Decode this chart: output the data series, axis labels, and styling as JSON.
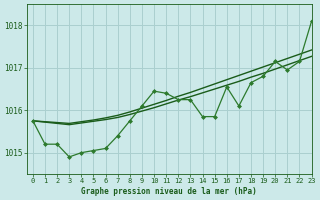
{
  "xlabel": "Graphe pression niveau de la mer (hPa)",
  "xlim": [
    -0.5,
    23
  ],
  "ylim": [
    1014.5,
    1018.5
  ],
  "yticks": [
    1015,
    1016,
    1017,
    1018
  ],
  "xticks": [
    0,
    1,
    2,
    3,
    4,
    5,
    6,
    7,
    8,
    9,
    10,
    11,
    12,
    13,
    14,
    15,
    16,
    17,
    18,
    19,
    20,
    21,
    22,
    23
  ],
  "background_color": "#cce9e9",
  "grid_color": "#aacfcf",
  "line_color": "#1a5c1a",
  "line_color2": "#2d7a2d",
  "smooth1": [
    1015.75,
    1015.72,
    1015.69,
    1015.66,
    1015.7,
    1015.74,
    1015.78,
    1015.83,
    1015.9,
    1015.98,
    1016.06,
    1016.15,
    1016.24,
    1016.32,
    1016.41,
    1016.5,
    1016.59,
    1016.68,
    1016.78,
    1016.87,
    1016.97,
    1017.07,
    1017.17,
    1017.27
  ],
  "smooth2": [
    1015.75,
    1015.73,
    1015.71,
    1015.69,
    1015.73,
    1015.77,
    1015.82,
    1015.88,
    1015.96,
    1016.05,
    1016.14,
    1016.23,
    1016.33,
    1016.42,
    1016.52,
    1016.62,
    1016.72,
    1016.82,
    1016.92,
    1017.02,
    1017.12,
    1017.22,
    1017.32,
    1017.42
  ],
  "zigzag": [
    1015.75,
    1015.2,
    1015.2,
    1014.9,
    1015.0,
    1015.05,
    1015.1,
    1015.4,
    1015.75,
    1016.1,
    1016.45,
    1016.4,
    1016.25,
    1016.25,
    1015.85,
    1015.85,
    1016.55,
    1016.1,
    1016.65,
    1016.8,
    1017.15,
    1016.95,
    1017.15,
    1018.1
  ]
}
